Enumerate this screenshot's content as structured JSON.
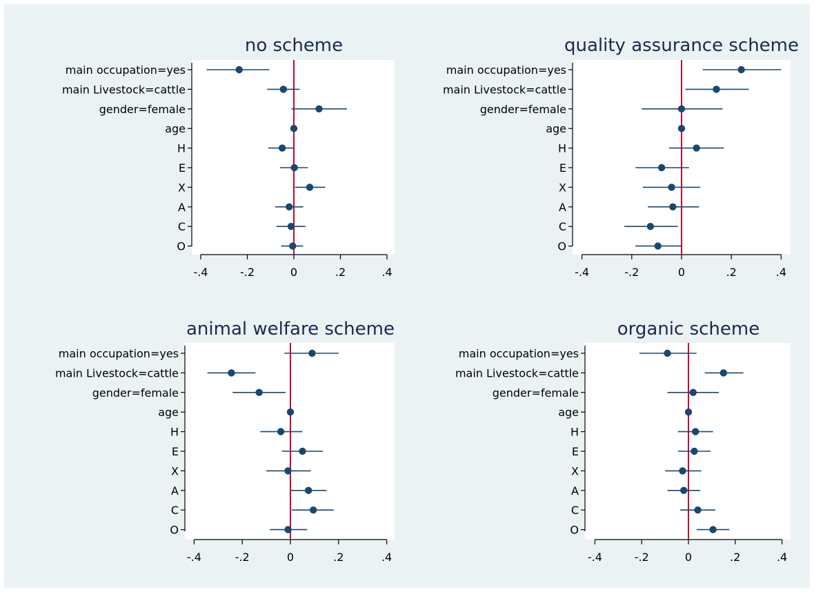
{
  "style": {
    "background": "#eaf2f3",
    "plot_background": "#ffffff",
    "marker_color": "#1a476f",
    "zero_line_color": "#c10534",
    "title_color": "#1b2a4e"
  },
  "chart_data": [
    {
      "type": "scatter",
      "title": "no scheme",
      "categories": [
        "main occupation=yes",
        "main Livestock=cattle",
        "gender=female",
        "age",
        "H",
        "E",
        "X",
        "A",
        "C",
        "O"
      ],
      "estimates": [
        -0.235,
        -0.045,
        0.108,
        0.0,
        -0.05,
        0.002,
        0.068,
        -0.02,
        -0.012,
        -0.005
      ],
      "ci_low": [
        -0.375,
        -0.115,
        -0.01,
        -0.005,
        -0.11,
        -0.06,
        0.005,
        -0.08,
        -0.075,
        -0.055
      ],
      "ci_high": [
        -0.105,
        0.025,
        0.228,
        0.005,
        0.0,
        0.06,
        0.135,
        0.04,
        0.05,
        0.04
      ],
      "xlim": [
        -0.4,
        0.4
      ],
      "xticks": [
        "-.4",
        "-.2",
        "0",
        ".2",
        ".4"
      ],
      "tick_values": [
        -0.4,
        -0.2,
        0,
        0.2,
        0.4
      ],
      "reference_line": 0
    },
    {
      "type": "scatter",
      "title": "quality assurance scheme",
      "categories": [
        "main occupation=yes",
        "main Livestock=cattle",
        "gender=female",
        "age",
        "H",
        "E",
        "X",
        "A",
        "C",
        "O"
      ],
      "estimates": [
        0.24,
        0.14,
        0.0,
        0.0,
        0.06,
        -0.08,
        -0.04,
        -0.035,
        -0.125,
        -0.095
      ],
      "ci_low": [
        0.085,
        0.015,
        -0.16,
        -0.005,
        -0.05,
        -0.185,
        -0.155,
        -0.135,
        -0.23,
        -0.185
      ],
      "ci_high": [
        0.4,
        0.27,
        0.165,
        0.005,
        0.17,
        0.03,
        0.075,
        0.07,
        -0.015,
        0.0
      ],
      "xlim": [
        -0.4,
        0.4
      ],
      "xticks": [
        "-.4",
        "-.2",
        "0",
        ".2",
        ".4"
      ],
      "tick_values": [
        -0.4,
        -0.2,
        0,
        0.2,
        0.4
      ],
      "reference_line": 0
    },
    {
      "type": "scatter",
      "title": "animal welfare scheme",
      "categories": [
        "main occupation=yes",
        "main Livestock=cattle",
        "gender=female",
        "age",
        "H",
        "E",
        "X",
        "A",
        "C",
        "O"
      ],
      "estimates": [
        0.09,
        -0.245,
        -0.13,
        0.0,
        -0.04,
        0.05,
        -0.01,
        0.075,
        0.095,
        -0.01
      ],
      "ci_low": [
        -0.025,
        -0.345,
        -0.24,
        -0.005,
        -0.125,
        -0.035,
        -0.1,
        0.0,
        0.005,
        -0.085
      ],
      "ci_high": [
        0.2,
        -0.145,
        -0.02,
        0.005,
        0.05,
        0.135,
        0.085,
        0.15,
        0.18,
        0.07
      ],
      "xlim": [
        -0.4,
        0.4
      ],
      "xticks": [
        "-.4",
        "-.2",
        "0",
        ".2",
        ".4"
      ],
      "tick_values": [
        -0.4,
        -0.2,
        0,
        0.2,
        0.4
      ],
      "reference_line": 0
    },
    {
      "type": "scatter",
      "title": "organic scheme",
      "categories": [
        "main occupation=yes",
        "main Livestock=cattle",
        "gender=female",
        "age",
        "H",
        "E",
        "X",
        "A",
        "C",
        "O"
      ],
      "estimates": [
        -0.09,
        0.15,
        0.02,
        0.0,
        0.03,
        0.025,
        -0.025,
        -0.02,
        0.04,
        0.105
      ],
      "ci_low": [
        -0.21,
        0.07,
        -0.09,
        -0.005,
        -0.045,
        -0.045,
        -0.1,
        -0.09,
        -0.035,
        0.035
      ],
      "ci_high": [
        0.035,
        0.235,
        0.13,
        0.005,
        0.105,
        0.095,
        0.055,
        0.05,
        0.115,
        0.175
      ],
      "xlim": [
        -0.4,
        0.4
      ],
      "xticks": [
        "-.4",
        "-.2",
        "0",
        ".2",
        ".4"
      ],
      "tick_values": [
        -0.4,
        -0.2,
        0,
        0.2,
        0.4
      ],
      "reference_line": 0
    }
  ]
}
